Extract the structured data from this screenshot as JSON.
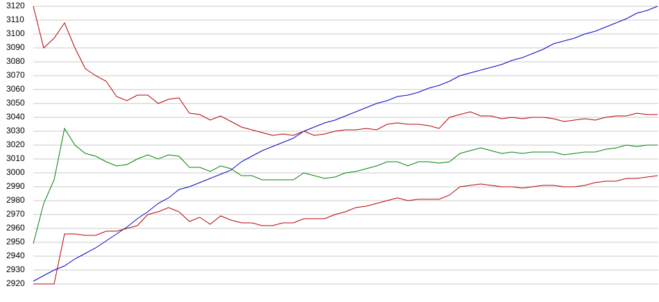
{
  "chart_data": {
    "type": "line",
    "categories": [
      null,
      null,
      null,
      null,
      null,
      null,
      null,
      null,
      null,
      null,
      null,
      null,
      null,
      null,
      null,
      null,
      null,
      null,
      null,
      null,
      null,
      null,
      null,
      null,
      null,
      null,
      null,
      null,
      null,
      null,
      null,
      null,
      null,
      null,
      null,
      null,
      null,
      null,
      null,
      null,
      null,
      null,
      null,
      null,
      null,
      null,
      null,
      null,
      null,
      null,
      null,
      null,
      null,
      null,
      null,
      null,
      null,
      null,
      null,
      null,
      null
    ],
    "series": [
      {
        "color": "#0000c8",
        "values": [
          2922,
          2926,
          2930,
          2933,
          2938,
          2942,
          2946,
          2951,
          2956,
          2961,
          2967,
          2972,
          2978,
          2982,
          2988,
          2990,
          2993,
          2996,
          2999,
          3002,
          3008,
          3012,
          3016,
          3019,
          3022,
          3025,
          3030,
          3033,
          3036,
          3038,
          3041,
          3044,
          3047,
          3050,
          3052,
          3055,
          3056,
          3058,
          3061,
          3063,
          3066,
          3070,
          3072,
          3074,
          3076,
          3078,
          3081,
          3083,
          3086,
          3089,
          3093,
          3095,
          3097,
          3100,
          3102,
          3105,
          3108,
          3111,
          3115,
          3117,
          3120
        ]
      },
      {
        "color": "#b40000",
        "values": [
          3120,
          3090,
          3097,
          3108,
          3090,
          3075,
          3070,
          3066,
          3055,
          3052,
          3056,
          3056,
          3050,
          3053,
          3054,
          3043,
          3042,
          3038,
          3041,
          3037,
          3033,
          3031,
          3029,
          3027,
          3028,
          3027,
          3030,
          3027,
          3028,
          3030,
          3031,
          3031,
          3032,
          3031,
          3035,
          3036,
          3035,
          3035,
          3034,
          3032,
          3040,
          3042,
          3044,
          3041,
          3041,
          3039,
          3040,
          3039,
          3040,
          3040,
          3039,
          3037,
          3038,
          3039,
          3038,
          3040,
          3041,
          3041,
          3043,
          3042,
          3042
        ]
      },
      {
        "color": "#008000",
        "values": [
          2949,
          2978,
          2995,
          3032,
          3020,
          3014,
          3012,
          3008,
          3005,
          3006,
          3010,
          3013,
          3010,
          3013,
          3012,
          3004,
          3004,
          3001,
          3005,
          3003,
          2998,
          2998,
          2995,
          2995,
          2995,
          2995,
          3000,
          2998,
          2996,
          2997,
          3000,
          3001,
          3003,
          3005,
          3008,
          3008,
          3005,
          3008,
          3008,
          3007,
          3008,
          3014,
          3016,
          3018,
          3016,
          3014,
          3015,
          3014,
          3015,
          3015,
          3015,
          3013,
          3014,
          3015,
          3015,
          3017,
          3018,
          3020,
          3019,
          3020,
          3020
        ]
      },
      {
        "color": "#b40000",
        "values": [
          2920,
          2920,
          2920,
          2956,
          2956,
          2955,
          2955,
          2958,
          2958,
          2960,
          2962,
          2970,
          2972,
          2975,
          2972,
          2965,
          2968,
          2963,
          2969,
          2966,
          2964,
          2964,
          2962,
          2962,
          2964,
          2964,
          2967,
          2967,
          2967,
          2970,
          2972,
          2975,
          2976,
          2978,
          2980,
          2982,
          2980,
          2981,
          2981,
          2981,
          2984,
          2990,
          2991,
          2992,
          2991,
          2990,
          2990,
          2989,
          2990,
          2991,
          2991,
          2990,
          2990,
          2991,
          2993,
          2994,
          2994,
          2996,
          2996,
          2997,
          2998
        ]
      }
    ],
    "ylim": [
      2920,
      3120
    ],
    "yticks": [
      2920,
      2930,
      2940,
      2950,
      2960,
      2970,
      2980,
      2990,
      3000,
      3010,
      3020,
      3030,
      3040,
      3050,
      3060,
      3070,
      3080,
      3090,
      3100,
      3110,
      3120
    ],
    "grid": true
  }
}
